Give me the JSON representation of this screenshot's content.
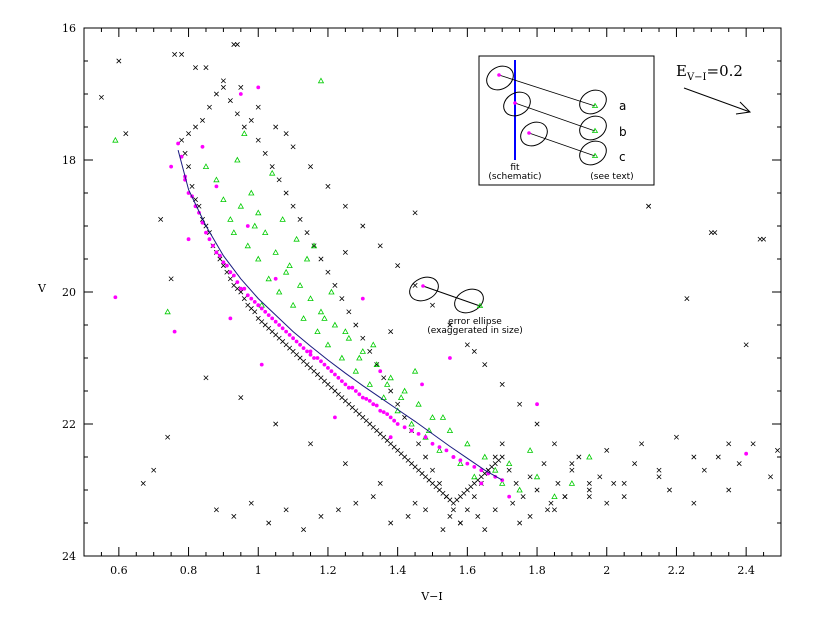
{
  "chart_data": {
    "type": "scatter",
    "title": "",
    "xlabel": "V−I",
    "ylabel": "V",
    "xlim": [
      0.5,
      2.5
    ],
    "ylim": [
      24,
      16
    ],
    "y_inverted": true,
    "x_ticks": [
      "0.6",
      "0.8",
      "1",
      "1.2",
      "1.4",
      "1.6",
      "1.8",
      "2",
      "2.2",
      "2.4"
    ],
    "y_ticks": [
      "16",
      "18",
      "20",
      "22",
      "24"
    ],
    "colors": {
      "cross": "#000000",
      "dot": "#ff00ff",
      "triangle": "#00cc00",
      "fit": "#0000ff"
    },
    "fit_line": {
      "x": [
        0.77,
        0.8,
        0.85,
        0.9,
        0.95,
        1.0,
        1.05,
        1.1,
        1.15,
        1.2,
        1.25,
        1.3,
        1.35,
        1.4,
        1.45,
        1.5,
        1.55,
        1.6,
        1.65,
        1.7
      ],
      "y": [
        17.85,
        18.45,
        19.0,
        19.45,
        19.8,
        20.1,
        20.35,
        20.6,
        20.82,
        21.03,
        21.23,
        21.42,
        21.6,
        21.78,
        21.96,
        22.15,
        22.34,
        22.52,
        22.7,
        22.85
      ]
    },
    "series": [
      {
        "marker": "dot",
        "x": [
          0.77,
          0.78,
          0.79,
          0.8,
          0.81,
          0.82,
          0.83,
          0.84,
          0.85,
          0.86,
          0.87,
          0.88,
          0.89,
          0.9,
          0.91,
          0.92,
          0.93,
          0.94,
          0.95,
          0.96,
          0.97,
          0.98,
          0.99,
          1.0,
          1.01,
          1.02,
          1.03,
          1.04,
          1.05,
          1.06,
          1.07,
          1.08,
          1.09,
          1.1,
          1.11,
          1.12,
          1.13,
          1.14,
          1.15,
          1.16,
          1.17,
          1.18,
          1.19,
          1.2,
          1.21,
          1.22,
          1.23,
          1.24,
          1.25,
          1.26,
          1.27,
          1.28,
          1.29,
          1.3,
          1.31,
          1.32,
          1.33,
          1.34,
          1.35,
          1.36,
          1.37,
          1.38,
          1.39,
          1.4,
          1.42,
          1.44,
          1.46,
          1.48,
          1.5,
          1.52,
          1.54,
          1.56,
          1.58,
          1.6,
          1.62,
          1.64,
          1.66,
          1.68,
          1.7,
          0.59,
          0.75,
          0.76,
          0.79,
          0.8,
          0.84,
          0.88,
          0.92,
          0.97,
          1.01,
          1.05,
          1.15,
          1.22,
          1.3,
          1.38,
          1.47,
          1.56,
          1.64,
          1.72,
          2.4,
          1.8,
          1.55,
          1.35,
          0.95,
          1.0
        ],
        "y": [
          17.75,
          17.95,
          18.25,
          18.5,
          18.55,
          18.7,
          18.8,
          18.95,
          19.1,
          19.2,
          19.3,
          19.4,
          19.45,
          19.55,
          19.6,
          19.7,
          19.75,
          19.85,
          19.95,
          19.95,
          20.05,
          20.1,
          20.15,
          20.2,
          20.25,
          20.3,
          20.35,
          20.4,
          20.45,
          20.5,
          20.55,
          20.6,
          20.65,
          20.7,
          20.75,
          20.8,
          20.85,
          20.9,
          20.95,
          21.0,
          21.0,
          21.05,
          21.1,
          21.15,
          21.2,
          21.25,
          21.3,
          21.35,
          21.4,
          21.45,
          21.45,
          21.5,
          21.55,
          21.6,
          21.62,
          21.65,
          21.7,
          21.72,
          21.8,
          21.82,
          21.85,
          21.9,
          21.95,
          22.0,
          22.05,
          22.1,
          22.15,
          22.2,
          22.3,
          22.35,
          22.4,
          22.5,
          22.55,
          22.6,
          22.65,
          22.7,
          22.75,
          22.8,
          22.85,
          20.08,
          18.1,
          20.6,
          18.3,
          19.2,
          17.8,
          18.4,
          20.4,
          19.0,
          21.1,
          19.8,
          20.9,
          21.9,
          20.1,
          22.2,
          21.4,
          22.5,
          22.9,
          23.1,
          22.45,
          21.7,
          21.0,
          21.2,
          17.0,
          16.9
        ]
      },
      {
        "marker": "triangle",
        "x": [
          0.59,
          0.85,
          0.88,
          0.9,
          0.92,
          0.93,
          0.95,
          0.97,
          0.98,
          1.0,
          1.02,
          1.03,
          1.05,
          1.06,
          1.08,
          1.1,
          1.12,
          1.13,
          1.15,
          1.17,
          1.18,
          1.2,
          1.22,
          1.24,
          1.26,
          1.28,
          1.3,
          1.32,
          1.34,
          1.36,
          1.38,
          1.4,
          1.42,
          1.44,
          1.46,
          1.48,
          1.5,
          1.52,
          1.55,
          1.58,
          1.6,
          1.62,
          1.65,
          1.68,
          1.7,
          1.72,
          1.75,
          1.78,
          1.8,
          1.85,
          1.9,
          0.96,
          1.0,
          1.04,
          1.07,
          1.09,
          1.11,
          1.14,
          1.16,
          1.19,
          1.21,
          1.25,
          1.29,
          1.33,
          1.37,
          1.41,
          1.45,
          1.49,
          1.53,
          0.94,
          0.99,
          1.01,
          1.18,
          0.74,
          1.95
        ],
        "y": [
          17.7,
          18.1,
          18.3,
          18.6,
          18.9,
          19.1,
          18.7,
          19.3,
          18.5,
          19.5,
          19.1,
          19.8,
          19.4,
          20.0,
          19.7,
          20.2,
          19.9,
          20.4,
          20.1,
          20.6,
          20.3,
          20.8,
          20.5,
          21.0,
          20.7,
          21.2,
          20.9,
          21.4,
          21.1,
          21.6,
          21.3,
          21.8,
          21.5,
          22.0,
          21.7,
          22.2,
          21.9,
          22.4,
          22.1,
          22.6,
          22.3,
          22.8,
          22.5,
          22.7,
          22.9,
          22.6,
          23.0,
          22.4,
          22.8,
          23.1,
          22.9,
          17.6,
          18.8,
          18.2,
          18.9,
          19.6,
          19.2,
          19.5,
          19.3,
          20.4,
          20.0,
          20.6,
          21.0,
          20.8,
          21.4,
          21.6,
          21.2,
          22.1,
          21.9,
          18.0,
          19.0,
          20.2,
          16.8,
          20.3,
          22.5
        ]
      },
      {
        "marker": "cross",
        "x": [
          0.55,
          0.6,
          0.62,
          0.67,
          0.7,
          0.72,
          0.74,
          0.75,
          0.76,
          0.78,
          0.79,
          0.8,
          0.81,
          0.82,
          0.83,
          0.84,
          0.85,
          0.86,
          0.87,
          0.88,
          0.89,
          0.9,
          0.91,
          0.92,
          0.93,
          0.94,
          0.95,
          0.96,
          0.97,
          0.98,
          0.99,
          1.0,
          1.01,
          1.02,
          1.03,
          1.04,
          1.05,
          1.06,
          1.07,
          1.08,
          1.09,
          1.1,
          1.11,
          1.12,
          1.13,
          1.14,
          1.15,
          1.16,
          1.17,
          1.18,
          1.19,
          1.2,
          1.21,
          1.22,
          1.23,
          1.24,
          1.25,
          1.26,
          1.27,
          1.28,
          1.29,
          1.3,
          1.31,
          1.32,
          1.33,
          1.34,
          1.35,
          1.36,
          1.37,
          1.38,
          1.39,
          1.4,
          1.41,
          1.42,
          1.43,
          1.44,
          1.45,
          1.46,
          1.47,
          1.48,
          1.49,
          1.5,
          1.51,
          1.52,
          1.53,
          1.54,
          1.55,
          1.56,
          1.57,
          1.58,
          1.59,
          1.6,
          1.61,
          1.62,
          1.63,
          1.64,
          1.65,
          1.66,
          1.67,
          1.68,
          1.69,
          1.7,
          1.72,
          1.74,
          1.76,
          1.78,
          1.8,
          1.82,
          1.84,
          1.86,
          1.88,
          1.9,
          1.92,
          1.95,
          1.98,
          2.0,
          2.02,
          2.05,
          2.08,
          2.1,
          2.12,
          2.15,
          2.18,
          2.2,
          2.23,
          2.25,
          2.28,
          2.3,
          2.32,
          2.35,
          2.38,
          2.4,
          2.42,
          2.45,
          2.47,
          2.49,
          0.85,
          0.9,
          0.95,
          1.0,
          1.05,
          1.1,
          1.15,
          1.2,
          1.25,
          1.3,
          1.35,
          1.4,
          1.45,
          1.5,
          1.55,
          1.6,
          1.65,
          1.7,
          1.75,
          1.8,
          1.85,
          1.9,
          1.95,
          2.0,
          0.88,
          0.93,
          0.98,
          1.03,
          1.08,
          1.13,
          1.18,
          1.23,
          1.28,
          1.33,
          1.38,
          1.43,
          1.48,
          1.53,
          1.58,
          1.63,
          1.68,
          1.73,
          1.78,
          1.83,
          1.88,
          0.8,
          0.82,
          0.84,
          0.86,
          0.88,
          0.9,
          0.92,
          0.94,
          0.96,
          0.98,
          1.0,
          1.02,
          1.04,
          1.06,
          1.08,
          1.1,
          1.12,
          1.14,
          1.16,
          1.18,
          1.2,
          1.22,
          1.24,
          1.26,
          1.28,
          1.3,
          1.32,
          1.34,
          1.36,
          1.38,
          1.4,
          1.42,
          1.44,
          1.46,
          1.48,
          1.5,
          1.52,
          1.54,
          1.56,
          1.58,
          1.6,
          1.62,
          1.64,
          1.66,
          1.68,
          1.7,
          0.85,
          0.95,
          1.05,
          1.15,
          1.25,
          1.35,
          1.45,
          1.55,
          1.65,
          1.75,
          1.85,
          1.95,
          2.05,
          2.15,
          2.25,
          2.35,
          0.93,
          0.94,
          0.82,
          0.78,
          1.08,
          1.45,
          1.38,
          1.62,
          1.25,
          2.12,
          2.31,
          2.44
        ],
        "y": [
          17.05,
          16.5,
          17.6,
          22.9,
          22.7,
          18.9,
          22.2,
          19.8,
          16.4,
          17.7,
          17.9,
          18.1,
          18.4,
          18.6,
          18.7,
          18.9,
          19.0,
          19.1,
          19.3,
          19.4,
          19.5,
          19.6,
          19.7,
          19.8,
          19.9,
          19.95,
          20.0,
          20.1,
          20.2,
          20.25,
          20.3,
          20.4,
          20.45,
          20.5,
          20.55,
          20.6,
          20.65,
          20.7,
          20.75,
          20.8,
          20.85,
          20.9,
          20.95,
          21.0,
          21.05,
          21.1,
          21.15,
          21.2,
          21.25,
          21.3,
          21.35,
          21.4,
          21.45,
          21.5,
          21.55,
          21.6,
          21.65,
          21.7,
          21.75,
          21.8,
          21.85,
          21.9,
          21.95,
          22.0,
          22.05,
          22.1,
          22.15,
          22.2,
          22.25,
          22.3,
          22.35,
          22.4,
          22.45,
          22.5,
          22.55,
          22.6,
          22.65,
          22.7,
          22.75,
          22.8,
          22.85,
          22.9,
          22.95,
          23.0,
          23.05,
          23.1,
          23.15,
          23.2,
          23.15,
          23.1,
          23.05,
          23.0,
          22.95,
          22.9,
          22.85,
          22.8,
          22.75,
          22.7,
          22.65,
          22.6,
          22.55,
          22.5,
          22.7,
          22.9,
          23.1,
          22.8,
          23.0,
          22.6,
          23.2,
          22.9,
          23.1,
          22.7,
          22.5,
          23.0,
          22.8,
          22.4,
          22.9,
          23.1,
          22.6,
          22.3,
          18.7,
          22.8,
          23.0,
          22.2,
          20.1,
          23.2,
          22.7,
          19.1,
          22.5,
          23.0,
          22.6,
          20.8,
          22.3,
          19.2,
          22.8,
          22.4,
          16.6,
          16.8,
          16.9,
          17.2,
          17.5,
          17.8,
          18.1,
          18.4,
          18.7,
          19.0,
          19.3,
          19.6,
          19.9,
          20.2,
          20.5,
          20.8,
          21.1,
          21.4,
          21.7,
          22.0,
          22.3,
          22.6,
          22.9,
          23.2,
          23.3,
          23.4,
          23.2,
          23.5,
          23.3,
          23.6,
          23.4,
          23.3,
          23.2,
          23.1,
          23.5,
          23.4,
          23.3,
          23.6,
          23.5,
          23.4,
          23.3,
          23.2,
          23.4,
          23.3,
          23.1,
          17.6,
          17.5,
          17.4,
          17.2,
          17.0,
          16.9,
          17.1,
          17.3,
          17.5,
          17.4,
          17.7,
          17.9,
          18.1,
          18.3,
          18.5,
          18.7,
          18.9,
          19.1,
          19.3,
          19.5,
          19.7,
          19.9,
          20.1,
          20.3,
          20.5,
          20.7,
          20.9,
          21.1,
          21.3,
          21.5,
          21.7,
          21.9,
          22.1,
          22.3,
          22.5,
          22.7,
          22.9,
          23.1,
          23.3,
          23.5,
          23.3,
          23.1,
          22.9,
          22.7,
          22.5,
          22.3,
          21.3,
          21.6,
          22.0,
          22.3,
          22.6,
          22.9,
          23.2,
          23.4,
          23.6,
          23.5,
          23.3,
          23.1,
          22.9,
          22.7,
          22.5,
          22.3,
          16.25,
          16.25,
          16.6,
          16.4,
          17.6,
          18.8,
          20.6,
          20.9,
          19.4,
          18.7,
          19.1,
          19.2
        ]
      }
    ],
    "annotations": {
      "error_ellipse_label_1": "error ellipse",
      "error_ellipse_label_2": "(exaggerated in size)",
      "reddening_label_main": "E",
      "reddening_label_sub": "V−I",
      "reddening_label_value": "=0.2",
      "inset_fit_label_1": "fit",
      "inset_fit_label_2": "(schematic)",
      "inset_text_label": "(see text)",
      "inset_letters": [
        "a",
        "b",
        "c"
      ]
    }
  }
}
